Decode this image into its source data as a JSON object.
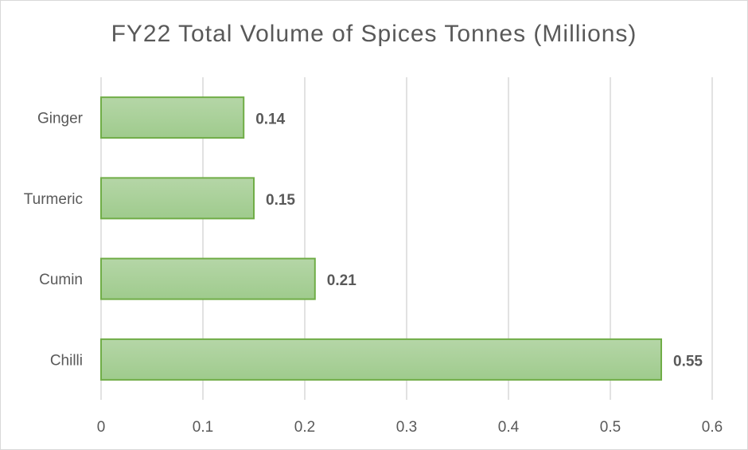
{
  "chart_data": {
    "type": "bar",
    "orientation": "horizontal",
    "title": "FY22 Total Volume of Spices Tonnes (Millions)",
    "categories": [
      "Ginger",
      "Turmeric",
      "Cumin",
      "Chilli"
    ],
    "values": [
      0.14,
      0.15,
      0.21,
      0.55
    ],
    "data_labels": [
      "0.14",
      "0.15",
      "0.21",
      "0.55"
    ],
    "xlim": [
      0,
      0.6
    ],
    "x_ticks": [
      "0",
      "0.1",
      "0.2",
      "0.3",
      "0.4",
      "0.5",
      "0.6"
    ],
    "grid": true,
    "legend": "none",
    "colors": {
      "bar_fill_top": "#b5d6a7",
      "bar_fill_bottom": "#9fcb8d",
      "bar_border": "#70ad47",
      "grid": "#d9d9d9",
      "text": "#595959"
    }
  }
}
